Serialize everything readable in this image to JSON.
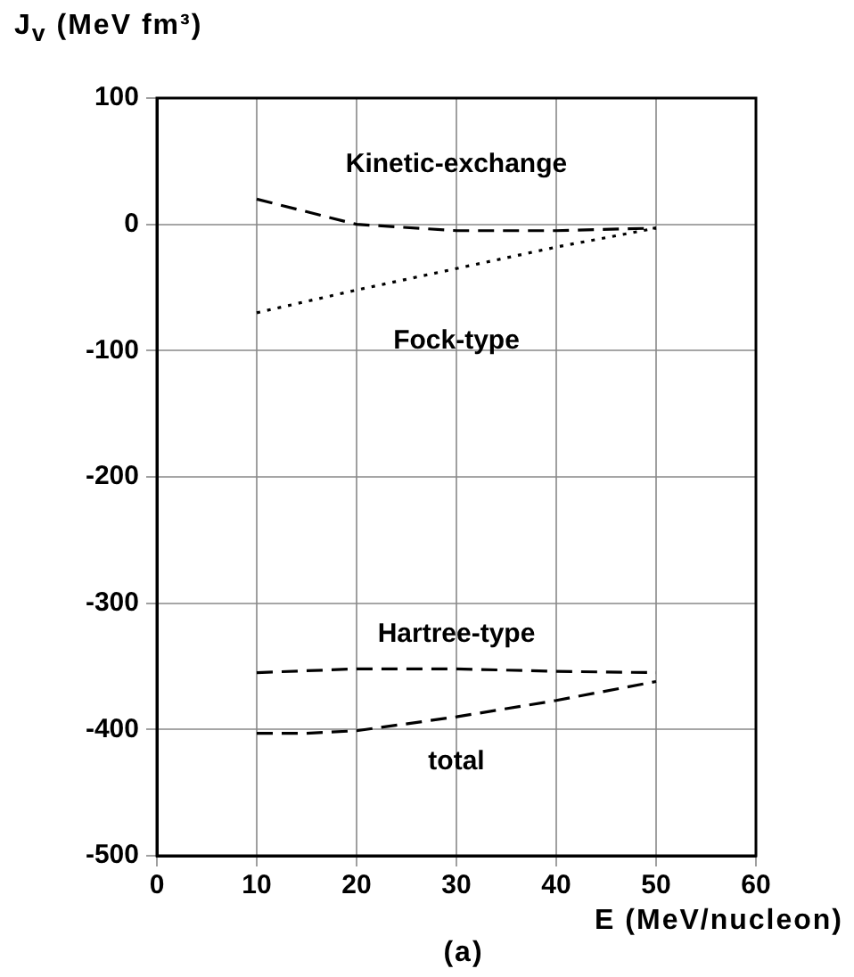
{
  "chart_data": {
    "type": "line",
    "ylabel": "J$_{v}$ (MeV fm³)",
    "xlabel": "E (MeV/nucleon)",
    "annotations": [
      "(a)"
    ],
    "x": [
      10,
      20,
      30,
      40,
      50
    ],
    "xlim": [
      0,
      60
    ],
    "xticks": [
      0,
      10,
      20,
      30,
      40,
      50,
      60
    ],
    "ylim": [
      -500,
      100
    ],
    "yticks": [
      100,
      0,
      -100,
      -200,
      -300,
      -400,
      -500
    ],
    "grid": true,
    "marker": "none",
    "series": [
      {
        "name": "Kinetic-exchange",
        "color": "#000000",
        "line_style": "dashed",
        "values": [
          20,
          0,
          -5,
          -5,
          -3
        ]
      },
      {
        "name": "Fock-type",
        "color": "#000000",
        "line_style": "dotted",
        "values": [
          -70,
          -52,
          -35,
          -18,
          -3
        ]
      },
      {
        "name": "Hartree-type",
        "color": "#000000",
        "line_style": "dashed",
        "values": [
          -355,
          -352,
          -352,
          -354,
          -355
        ]
      },
      {
        "name": "total",
        "color": "#000000",
        "line_style": "dashed",
        "x": [
          10,
          15,
          20,
          30,
          40,
          50
        ],
        "values": [
          -403,
          -403,
          -401,
          -390,
          -377,
          -362
        ]
      }
    ]
  }
}
